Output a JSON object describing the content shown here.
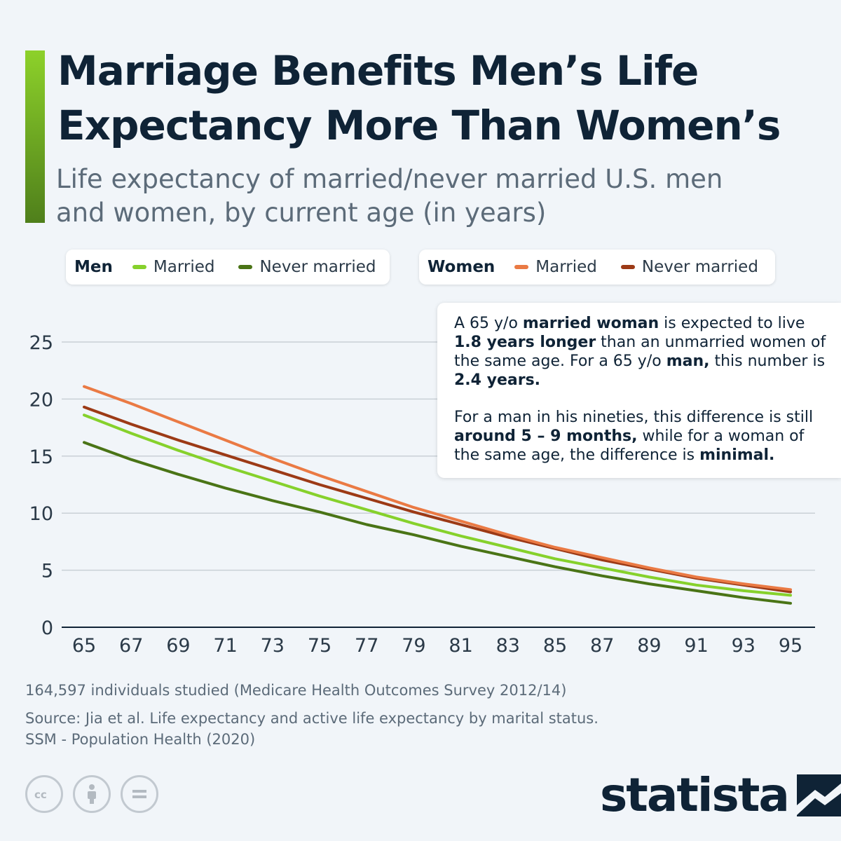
{
  "header": {
    "title": "Marriage Benefits Men’s Life Expectancy More Than Women’s",
    "subtitle": "Life expectancy of married/never married U.S. men and women, by current age (in years)"
  },
  "legend": {
    "men_label": "Men",
    "women_label": "Women",
    "married_label": "Married",
    "never_married_label": "Never married"
  },
  "annotation": {
    "p1": [
      "A 65 y/o ",
      "married woman",
      " is expected to live ",
      "1.8 years longer",
      " than an unmarried women of the same age. For a 65 y/o ",
      "man,",
      " this number is ",
      "2.4 years."
    ],
    "p2": [
      "For a man in his nineties, this difference is still ",
      "around 5 – 9 months,",
      " while for a woman of the same age, the difference is ",
      "minimal."
    ]
  },
  "footer": {
    "note": "164,597 individuals studied (Medicare Health Outcomes Survey 2012/14)",
    "source_line1": "Source: Jia et al. Life expectancy and active life expectancy by marital status.",
    "source_line2": "SSM - Population Health (2020)",
    "logo_text": "statista"
  },
  "icons": [
    "cc-icon",
    "attribution-icon",
    "no-derivatives-icon",
    "statista-logo-icon"
  ],
  "chart_data": {
    "type": "line",
    "title": "",
    "xlabel": "",
    "ylabel": "",
    "ylim": [
      0,
      25
    ],
    "xlim": [
      65,
      95
    ],
    "yticks": [
      0,
      5,
      10,
      15,
      20,
      25
    ],
    "xticks": [
      65,
      67,
      69,
      71,
      73,
      75,
      77,
      79,
      81,
      83,
      85,
      87,
      89,
      91,
      93,
      95
    ],
    "grid": "horizontal",
    "legend_position": "top",
    "x": [
      65,
      67,
      69,
      71,
      73,
      75,
      77,
      79,
      81,
      83,
      85,
      87,
      89,
      91,
      93,
      95
    ],
    "series": [
      {
        "name": "Men – Married",
        "color": "#86d12c",
        "values": [
          18.6,
          17.0,
          15.5,
          14.1,
          12.8,
          11.5,
          10.3,
          9.1,
          8.0,
          7.0,
          6.0,
          5.2,
          4.4,
          3.7,
          3.2,
          2.8
        ]
      },
      {
        "name": "Men – Never married",
        "color": "#4a7416",
        "values": [
          16.2,
          14.7,
          13.4,
          12.2,
          11.1,
          10.1,
          9.0,
          8.1,
          7.1,
          6.2,
          5.3,
          4.5,
          3.8,
          3.2,
          2.6,
          2.1
        ]
      },
      {
        "name": "Women – Married",
        "color": "#ea7a44",
        "values": [
          21.1,
          19.6,
          18.0,
          16.4,
          14.8,
          13.3,
          11.9,
          10.5,
          9.3,
          8.1,
          7.0,
          6.1,
          5.2,
          4.4,
          3.8,
          3.3
        ]
      },
      {
        "name": "Women – Never married",
        "color": "#9c3a16",
        "values": [
          19.3,
          17.8,
          16.4,
          15.1,
          13.8,
          12.5,
          11.3,
          10.1,
          9.0,
          7.9,
          6.9,
          5.9,
          5.1,
          4.3,
          3.7,
          3.1
        ]
      }
    ]
  }
}
